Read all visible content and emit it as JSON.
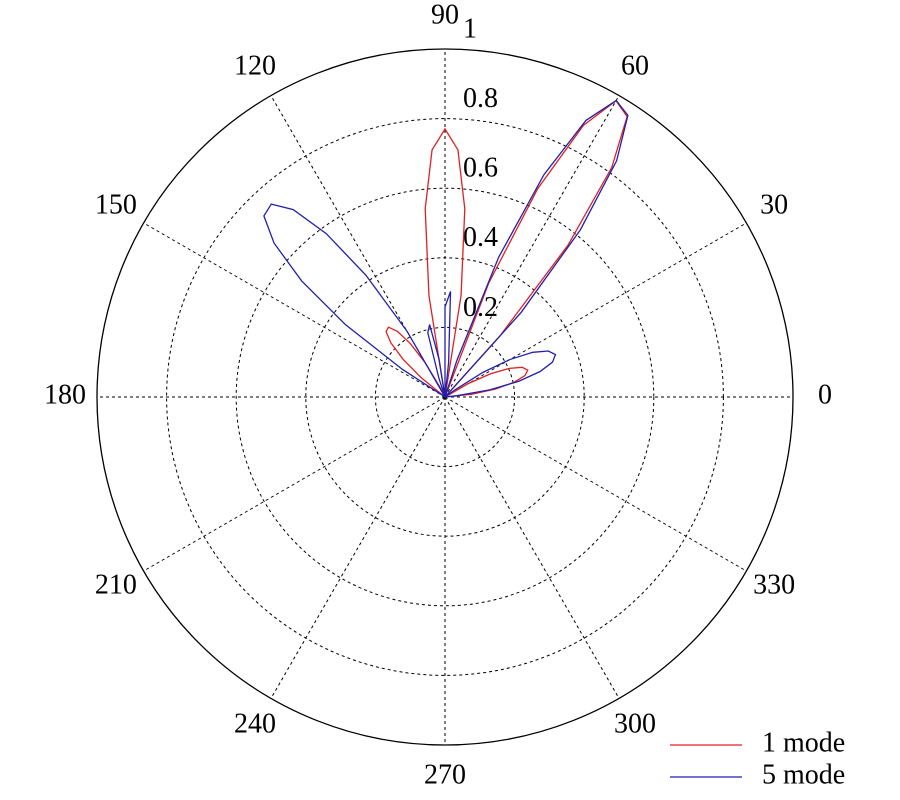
{
  "chart_data": {
    "type": "polar",
    "theta": [
      0,
      3,
      6,
      9,
      12,
      15,
      18,
      21,
      24,
      27,
      30,
      33,
      36,
      39,
      42,
      45,
      48,
      51,
      54,
      57,
      60,
      63,
      66,
      69,
      72,
      75,
      78,
      81,
      84,
      87,
      90,
      93,
      96,
      99,
      102,
      105,
      108,
      111,
      114,
      117,
      120,
      123,
      126,
      129,
      132,
      135,
      138,
      141,
      144,
      147,
      150,
      153,
      156,
      159,
      162,
      165,
      168,
      171,
      174,
      177,
      180
    ],
    "series": [
      {
        "name": "1 mode",
        "color": "#e02020",
        "values": [
          0,
          0,
          0.077,
          0.147,
          0.202,
          0.238,
          0.25,
          0.238,
          0.202,
          0.147,
          0.077,
          0,
          0,
          0,
          0,
          0,
          0.236,
          0.562,
          0.815,
          0.961,
          0.983,
          0.876,
          0.656,
          0.351,
          0,
          0,
          0,
          0.295,
          0.544,
          0.711,
          0.77,
          0.711,
          0.544,
          0.295,
          0,
          0,
          0,
          0,
          0,
          0.029,
          0.113,
          0.184,
          0.234,
          0.258,
          0.253,
          0.22,
          0.162,
          0.086,
          0,
          0,
          0,
          0,
          0,
          0,
          0,
          0,
          0,
          0,
          0,
          0,
          0
        ]
      },
      {
        "name": "5 mode",
        "color": "#2020b0",
        "values": [
          0,
          0,
          0.033,
          0.13,
          0.216,
          0.283,
          0.325,
          0.34,
          0.325,
          0.283,
          0.216,
          0.13,
          0.033,
          0,
          0,
          0,
          0.327,
          0.618,
          0.839,
          0.965,
          0.984,
          0.892,
          0.7,
          0.43,
          0.11,
          0,
          0,
          0,
          0.099,
          0.304,
          0.259,
          0,
          0,
          0.11,
          0.213,
          0.191,
          0.057,
          0,
          0,
          0,
          0.218,
          0.417,
          0.58,
          0.693,
          0.746,
          0.736,
          0.661,
          0.53,
          0.353,
          0.146,
          0,
          0,
          0,
          0,
          0,
          0,
          0,
          0,
          0,
          0,
          0
        ]
      }
    ],
    "rlim": [
      0,
      1
    ],
    "rticks": [
      0.2,
      0.4,
      0.6,
      0.8,
      1
    ],
    "thetaticks": [
      0,
      30,
      60,
      90,
      120,
      150,
      180,
      210,
      240,
      270,
      300,
      330
    ],
    "grid": true,
    "legend": "lower right"
  }
}
